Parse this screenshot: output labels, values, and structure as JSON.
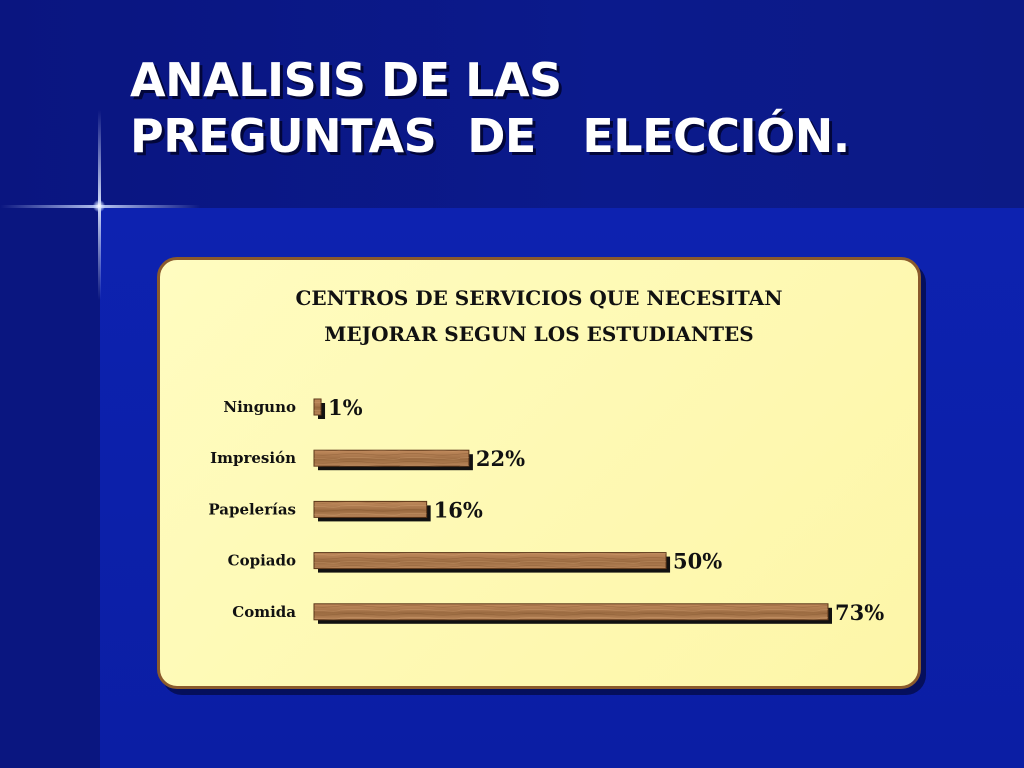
{
  "slide": {
    "title_line1": "ANALISIS DE LAS",
    "title_line2": "PREGUNTAS  DE   ELECCIÓN."
  },
  "colors": {
    "background": "#0b1ea4",
    "title_text": "#ffffff",
    "card_fill": "#fdf6a8",
    "card_border": "#8a5a2c",
    "bar_fill": "#a6744a",
    "bar_shadow": "#111111"
  },
  "chart_data": {
    "type": "bar",
    "orientation": "horizontal",
    "title_line1": "CENTROS DE SERVICIOS QUE NECESITAN",
    "title_line2": "MEJORAR SEGUN LOS ESTUDIANTES",
    "categories": [
      "Ninguno",
      "Impresión",
      "Papelerías",
      "Copiado",
      "Comida"
    ],
    "values": [
      1,
      22,
      16,
      50,
      73
    ],
    "value_labels": [
      "1%",
      "22%",
      "16%",
      "50%",
      "73%"
    ],
    "unit": "%",
    "xlim": [
      0,
      73
    ],
    "grid": false,
    "legend": "none"
  }
}
